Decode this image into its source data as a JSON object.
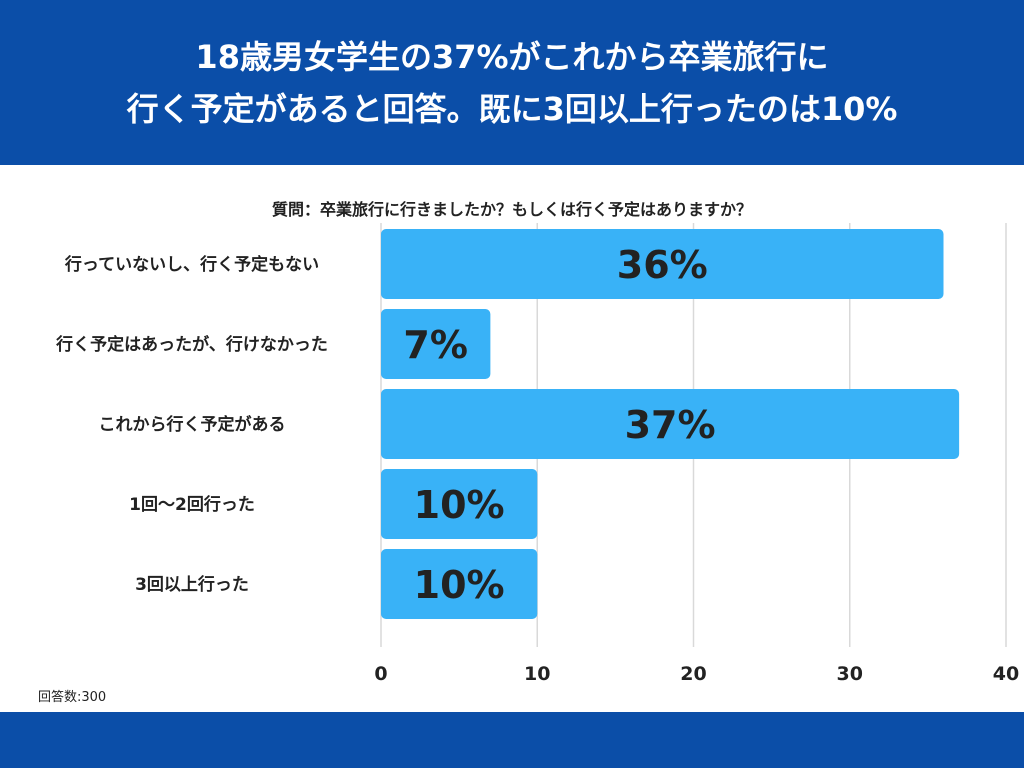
{
  "header": {
    "title_line1": "18歳男女学生の37%がこれから卒業旅行に",
    "title_line2": "行く予定があると回答。既に3回以上行ったのは10%"
  },
  "question": "質問：卒業旅行に行きましたか？もしくは行く予定はありますか？",
  "footnote": "回答数:300",
  "colors": {
    "header_bg": "#0b4ea8",
    "bar": "#39b2f7",
    "grid": "#d9d9d9"
  },
  "chart_data": {
    "type": "bar",
    "orientation": "horizontal",
    "categories": [
      "行っていないし、行く予定もない",
      "行く予定はあったが、行けなかった",
      "これから行く予定がある",
      "1回〜2回行った",
      "3回以上行った"
    ],
    "values": [
      36,
      7,
      37,
      10,
      10
    ],
    "data_labels": [
      "36%",
      "7%",
      "37%",
      "10%",
      "10%"
    ],
    "xlim": [
      0,
      40
    ],
    "xticks": [
      "0",
      "10",
      "20",
      "30",
      "40"
    ],
    "grid": true
  }
}
